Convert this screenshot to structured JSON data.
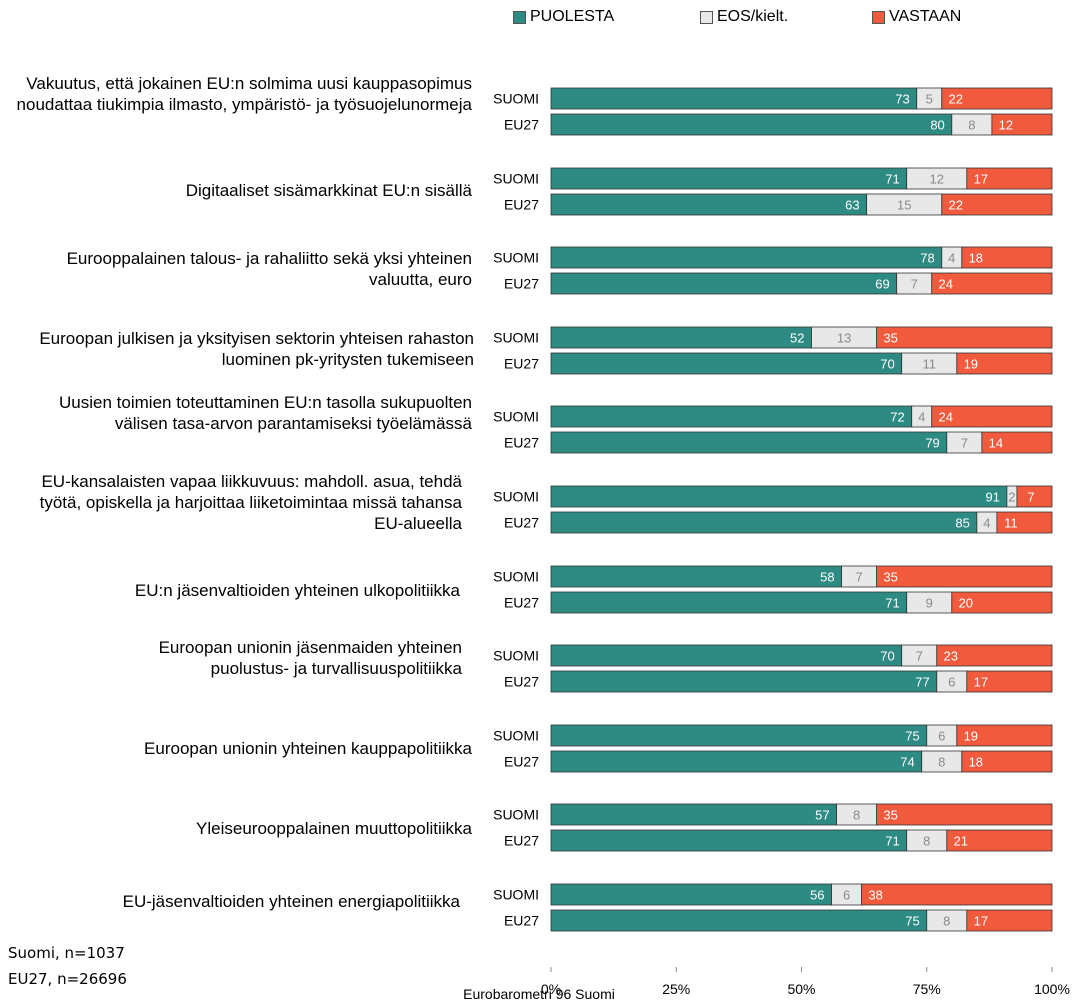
{
  "chart_data": {
    "type": "bar",
    "stacked": true,
    "orientation": "horizontal",
    "legend": {
      "placement": "top",
      "entries": [
        {
          "key": "for",
          "label": "PUOLESTA",
          "color": "#2E8B83"
        },
        {
          "key": "dk",
          "label": "EOS/kielt.",
          "color": "#E8E8E8"
        },
        {
          "key": "against",
          "label": "VASTAAN",
          "color": "#F15A3D"
        }
      ]
    },
    "xaxis": {
      "ticks": [
        "0%",
        "25%",
        "50%",
        "75%",
        "100%"
      ],
      "range": [
        0,
        100
      ]
    },
    "groups": [
      {
        "label": "Vakuutus, että jokainen EU:n solmima uusi kauppasopimus noudattaa tiukimpia ilmasto, ympäristö- ja työsuojelunormeja",
        "rows": [
          {
            "name": "SUOMI",
            "values": [
              73,
              5,
              22
            ]
          },
          {
            "name": "EU27",
            "values": [
              80,
              8,
              12
            ]
          }
        ]
      },
      {
        "label": "Digitaaliset sisämarkkinat EU:n sisällä",
        "rows": [
          {
            "name": "SUOMI",
            "values": [
              71,
              12,
              17
            ]
          },
          {
            "name": "EU27",
            "values": [
              63,
              15,
              22
            ]
          }
        ]
      },
      {
        "label": "Eurooppalainen talous- ja rahaliitto sekä yksi yhteinen valuutta, euro",
        "rows": [
          {
            "name": "SUOMI",
            "values": [
              78,
              4,
              18
            ]
          },
          {
            "name": "EU27",
            "values": [
              69,
              7,
              24
            ]
          }
        ]
      },
      {
        "label": "Euroopan julkisen ja yksityisen sektorin yhteisen rahaston luominen pk-yritysten tukemiseen",
        "rows": [
          {
            "name": "SUOMI",
            "values": [
              52,
              13,
              35
            ]
          },
          {
            "name": "EU27",
            "values": [
              70,
              11,
              19
            ]
          }
        ]
      },
      {
        "label": "Uusien toimien toteuttaminen EU:n tasolla sukupuolten välisen tasa-arvon parantamiseksi työelämässä",
        "rows": [
          {
            "name": "SUOMI",
            "values": [
              72,
              4,
              24
            ]
          },
          {
            "name": "EU27",
            "values": [
              79,
              7,
              14
            ]
          }
        ]
      },
      {
        "label": "EU-kansalaisten vapaa liikkuvuus: mahdoll. asua, tehdä työtä, opiskella ja harjoittaa liiketoimintaa missä tahansa EU-alueella",
        "rows": [
          {
            "name": "SUOMI",
            "values": [
              91,
              2,
              7
            ]
          },
          {
            "name": "EU27",
            "values": [
              85,
              4,
              11
            ]
          }
        ]
      },
      {
        "label": "EU:n jäsenvaltioiden yhteinen ulkopolitiikka",
        "rows": [
          {
            "name": "SUOMI",
            "values": [
              58,
              7,
              35
            ]
          },
          {
            "name": "EU27",
            "values": [
              71,
              9,
              20
            ]
          }
        ]
      },
      {
        "label": "Euroopan unionin jäsenmaiden yhteinen puolustus- ja turvallisuuspolitiikka",
        "rows": [
          {
            "name": "SUOMI",
            "values": [
              70,
              7,
              23
            ]
          },
          {
            "name": "EU27",
            "values": [
              77,
              6,
              17
            ]
          }
        ]
      },
      {
        "label": "Euroopan unionin yhteinen kauppapolitiikka",
        "rows": [
          {
            "name": "SUOMI",
            "values": [
              75,
              6,
              19
            ]
          },
          {
            "name": "EU27",
            "values": [
              74,
              8,
              18
            ]
          }
        ]
      },
      {
        "label": "Yleiseurooppalainen muuttopolitiikka",
        "rows": [
          {
            "name": "SUOMI",
            "values": [
              57,
              8,
              35
            ]
          },
          {
            "name": "EU27",
            "values": [
              71,
              8,
              21
            ]
          }
        ]
      },
      {
        "label": "EU-jäsenvaltioiden yhteinen energiapolitiikka",
        "rows": [
          {
            "name": "SUOMI",
            "values": [
              56,
              6,
              38
            ]
          },
          {
            "name": "EU27",
            "values": [
              75,
              8,
              17
            ]
          }
        ]
      }
    ]
  },
  "footnotes": {
    "suomi": "Suomi, n=1037",
    "eu27": "EU27, n=26696"
  },
  "source": "Eurobarometri 96 Suomi"
}
